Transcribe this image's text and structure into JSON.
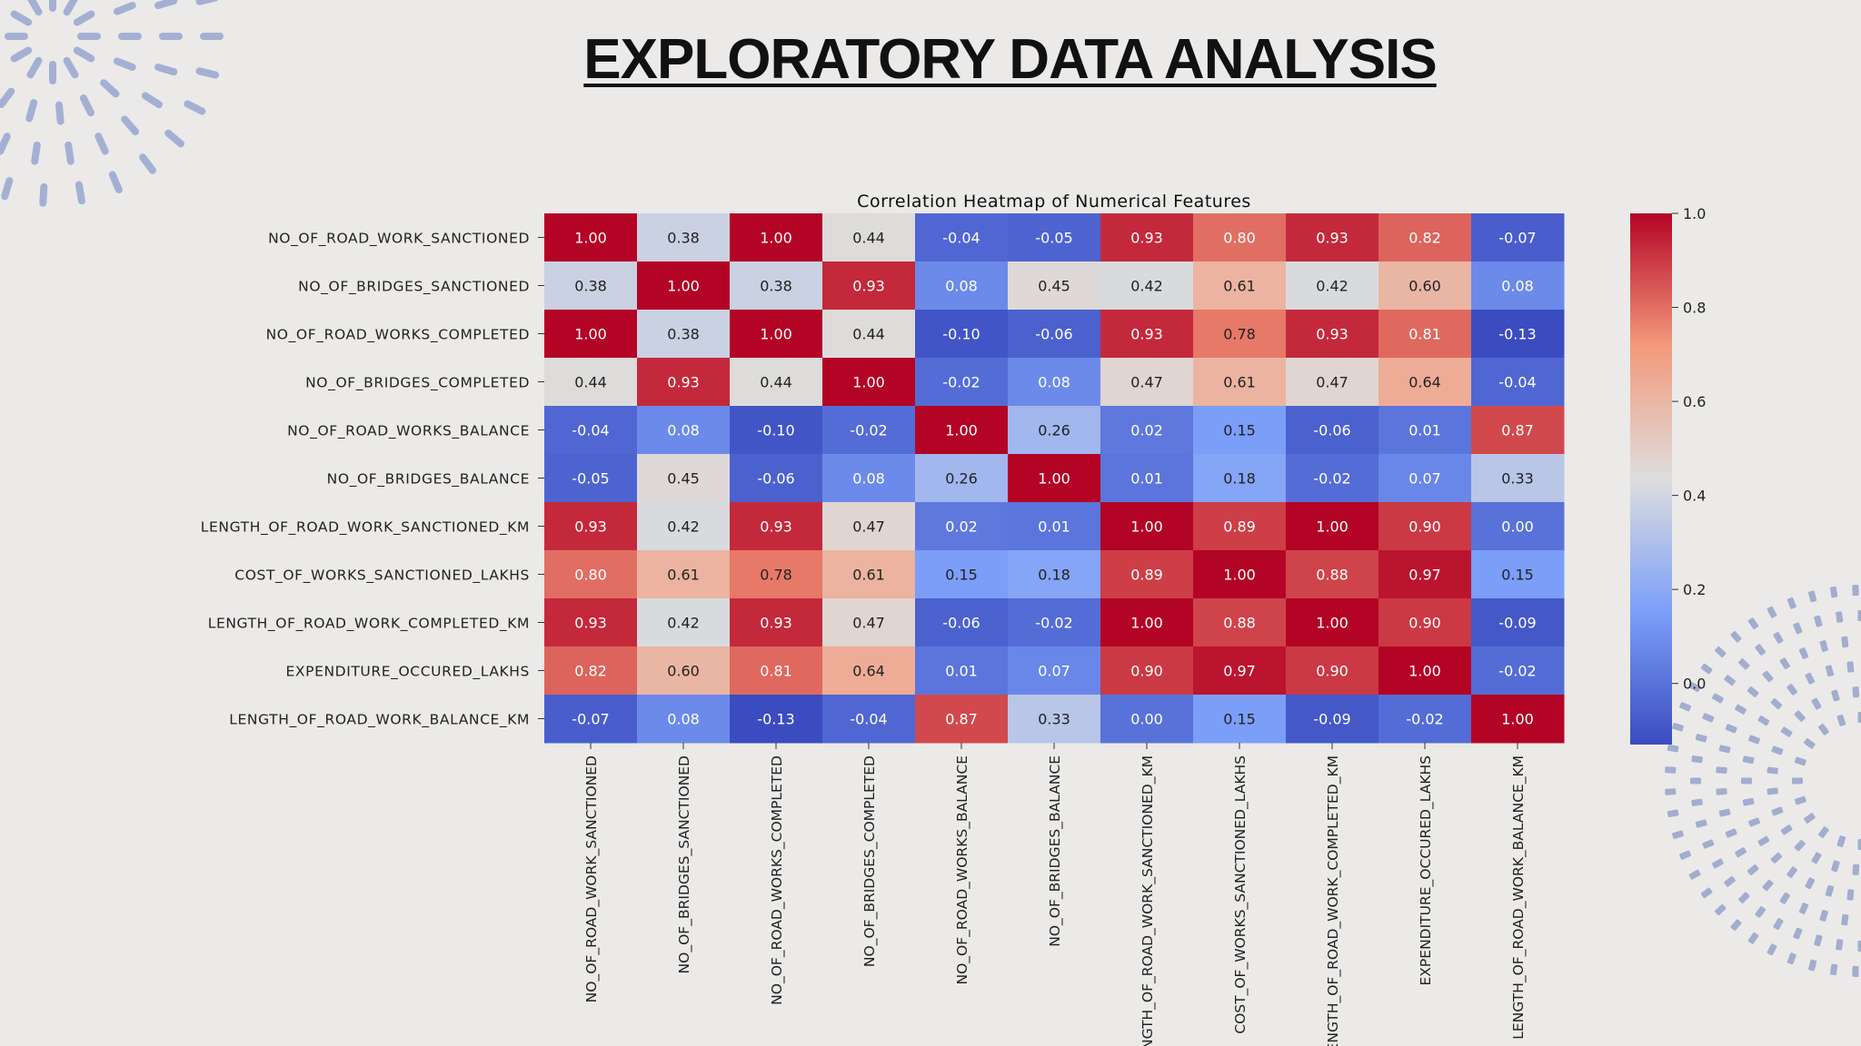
{
  "slide": {
    "title": "EXPLORATORY DATA ANALYSIS"
  },
  "chart_data": {
    "type": "heatmap",
    "title": "Correlation Heatmap of Numerical Features",
    "colormap": "coolwarm",
    "colorbar": {
      "min": -0.13,
      "max": 1.0,
      "ticks": [
        1.0,
        0.8,
        0.6,
        0.4,
        0.2,
        0.0
      ]
    },
    "row_labels": [
      "NO_OF_ROAD_WORK_SANCTIONED",
      "NO_OF_BRIDGES_SANCTIONED",
      "NO_OF_ROAD_WORKS_COMPLETED",
      "NO_OF_BRIDGES_COMPLETED",
      "NO_OF_ROAD_WORKS_BALANCE",
      "NO_OF_BRIDGES_BALANCE",
      "LENGTH_OF_ROAD_WORK_SANCTIONED_KM",
      "COST_OF_WORKS_SANCTIONED_LAKHS",
      "LENGTH_OF_ROAD_WORK_COMPLETED_KM",
      "EXPENDITURE_OCCURED_LAKHS",
      "LENGTH_OF_ROAD_WORK_BALANCE_KM"
    ],
    "col_labels": [
      "NO_OF_ROAD_WORK_SANCTIONED",
      "NO_OF_BRIDGES_SANCTIONED",
      "NO_OF_ROAD_WORKS_COMPLETED",
      "NO_OF_BRIDGES_COMPLETED",
      "NO_OF_ROAD_WORKS_BALANCE",
      "NO_OF_BRIDGES_BALANCE",
      "LENGTH_OF_ROAD_WORK_SANCTIONED_KM",
      "COST_OF_WORKS_SANCTIONED_LAKHS",
      "LENGTH_OF_ROAD_WORK_COMPLETED_KM",
      "EXPENDITURE_OCCURED_LAKHS",
      "LENGTH_OF_ROAD_WORK_BALANCE_KM"
    ],
    "values": [
      [
        1.0,
        0.38,
        1.0,
        0.44,
        -0.04,
        -0.05,
        0.93,
        0.8,
        0.93,
        0.82,
        -0.07
      ],
      [
        0.38,
        1.0,
        0.38,
        0.93,
        0.08,
        0.45,
        0.42,
        0.61,
        0.42,
        0.6,
        0.08
      ],
      [
        1.0,
        0.38,
        1.0,
        0.44,
        -0.1,
        -0.06,
        0.93,
        0.78,
        0.93,
        0.81,
        -0.13
      ],
      [
        0.44,
        0.93,
        0.44,
        1.0,
        -0.02,
        0.08,
        0.47,
        0.61,
        0.47,
        0.64,
        -0.04
      ],
      [
        -0.04,
        0.08,
        -0.1,
        -0.02,
        1.0,
        0.26,
        0.02,
        0.15,
        -0.06,
        0.01,
        0.87
      ],
      [
        -0.05,
        0.45,
        -0.06,
        0.08,
        0.26,
        1.0,
        0.01,
        0.18,
        -0.02,
        0.07,
        0.33
      ],
      [
        0.93,
        0.42,
        0.93,
        0.47,
        0.02,
        0.01,
        1.0,
        0.89,
        1.0,
        0.9,
        0.0
      ],
      [
        0.8,
        0.61,
        0.78,
        0.61,
        0.15,
        0.18,
        0.89,
        1.0,
        0.88,
        0.97,
        0.15
      ],
      [
        0.93,
        0.42,
        0.93,
        0.47,
        -0.06,
        -0.02,
        1.0,
        0.88,
        1.0,
        0.9,
        -0.09
      ],
      [
        0.82,
        0.6,
        0.81,
        0.64,
        0.01,
        0.07,
        0.9,
        0.97,
        0.9,
        1.0,
        -0.02
      ],
      [
        -0.07,
        0.08,
        -0.13,
        -0.04,
        0.87,
        0.33,
        0.0,
        0.15,
        -0.09,
        -0.02,
        1.0
      ]
    ],
    "grid": false,
    "legend": "colorbar-right"
  }
}
